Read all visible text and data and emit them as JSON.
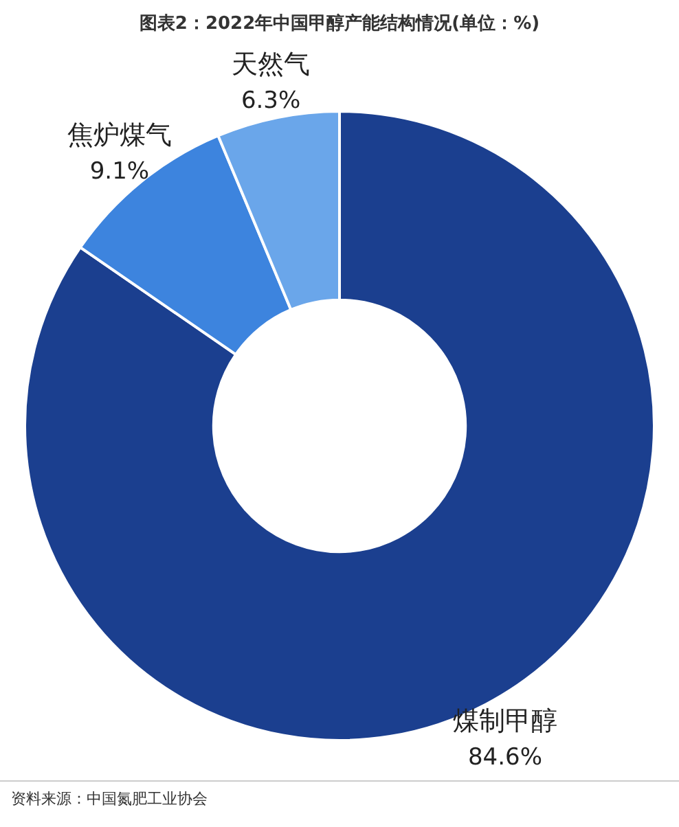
{
  "chart_data": {
    "type": "donut",
    "title": "图表2：2022年中国甲醇产能结构情况(单位：%)",
    "categories": [
      "煤制甲醇",
      "焦炉煤气",
      "天然气"
    ],
    "values": [
      84.6,
      9.1,
      6.3
    ],
    "colors": [
      "#1b3f8f",
      "#3d84de",
      "#6aa6ea"
    ],
    "value_labels": [
      "84.6%",
      "9.1%",
      "6.3%"
    ],
    "legend": false,
    "annotations": [
      "资料来源：中国氮肥工业协会"
    ]
  }
}
